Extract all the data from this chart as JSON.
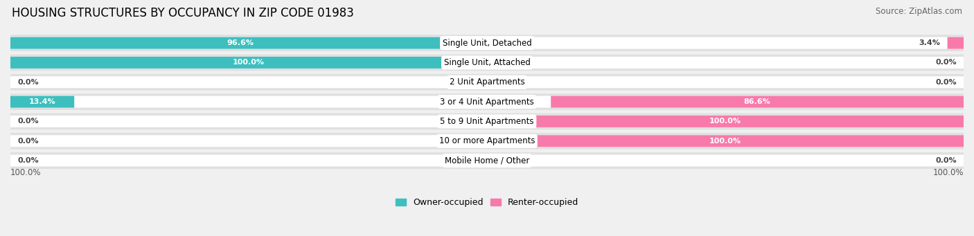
{
  "title": "HOUSING STRUCTURES BY OCCUPANCY IN ZIP CODE 01983",
  "source": "Source: ZipAtlas.com",
  "categories": [
    "Single Unit, Detached",
    "Single Unit, Attached",
    "2 Unit Apartments",
    "3 or 4 Unit Apartments",
    "5 to 9 Unit Apartments",
    "10 or more Apartments",
    "Mobile Home / Other"
  ],
  "owner_pct": [
    96.6,
    100.0,
    0.0,
    13.4,
    0.0,
    0.0,
    0.0
  ],
  "renter_pct": [
    3.4,
    0.0,
    0.0,
    86.6,
    100.0,
    100.0,
    0.0
  ],
  "owner_color": "#3dbfbf",
  "renter_color": "#f87aab",
  "bg_color": "#f0f0f0",
  "row_bg_color": "#e0e0e0",
  "bar_bg_color": "#ffffff",
  "title_fontsize": 12,
  "source_fontsize": 8.5,
  "cat_fontsize": 8.5,
  "bar_label_fontsize": 8,
  "axis_label_fontsize": 8.5
}
